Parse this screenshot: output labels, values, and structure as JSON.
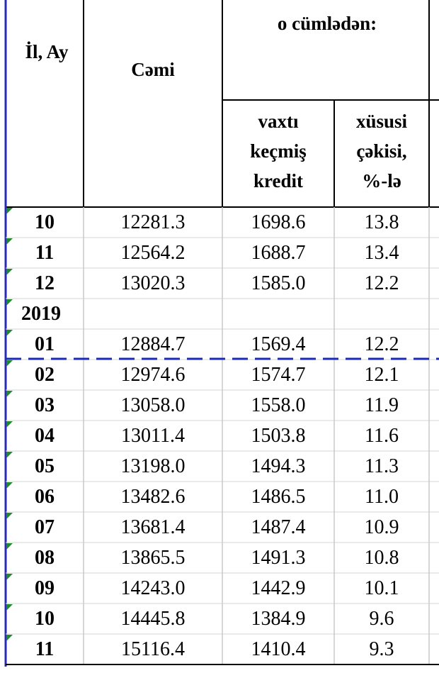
{
  "table": {
    "header": {
      "year_month": "İl, Ay",
      "total": "Cəmi",
      "including": "o cümlədən:",
      "overdue": [
        "vaxtı",
        "keçmiş",
        "kredit"
      ],
      "share": [
        "xüsusi",
        "çəkisi,",
        "%-lə"
      ]
    },
    "rows": [
      [
        "10",
        "12281.3",
        "1698.6",
        "13.8"
      ],
      [
        "11",
        "12564.2",
        "1688.7",
        "13.4"
      ],
      [
        "12",
        "13020.3",
        "1585.0",
        "12.2"
      ],
      [
        "2019"
      ],
      [
        "01",
        "12884.7",
        "1569.4",
        "12.2"
      ],
      [
        "02",
        "12974.6",
        "1574.7",
        "12.1"
      ],
      [
        "03",
        "13058.0",
        "1558.0",
        "11.9"
      ],
      [
        "04",
        "13011.4",
        "1503.8",
        "11.6"
      ],
      [
        "05",
        "13198.0",
        "1494.3",
        "11.3"
      ],
      [
        "06",
        "13482.6",
        "1486.5",
        "11.0"
      ],
      [
        "07",
        "13681.4",
        "1487.4",
        "10.9"
      ],
      [
        "08",
        "13865.5",
        "1491.3",
        "10.8"
      ],
      [
        "09",
        "14243.0",
        "1442.9",
        "10.1"
      ],
      [
        "10",
        "14445.8",
        "1384.9",
        "9.6"
      ],
      [
        "11",
        "15116.4",
        "1410.4",
        "9.3"
      ]
    ]
  }
}
